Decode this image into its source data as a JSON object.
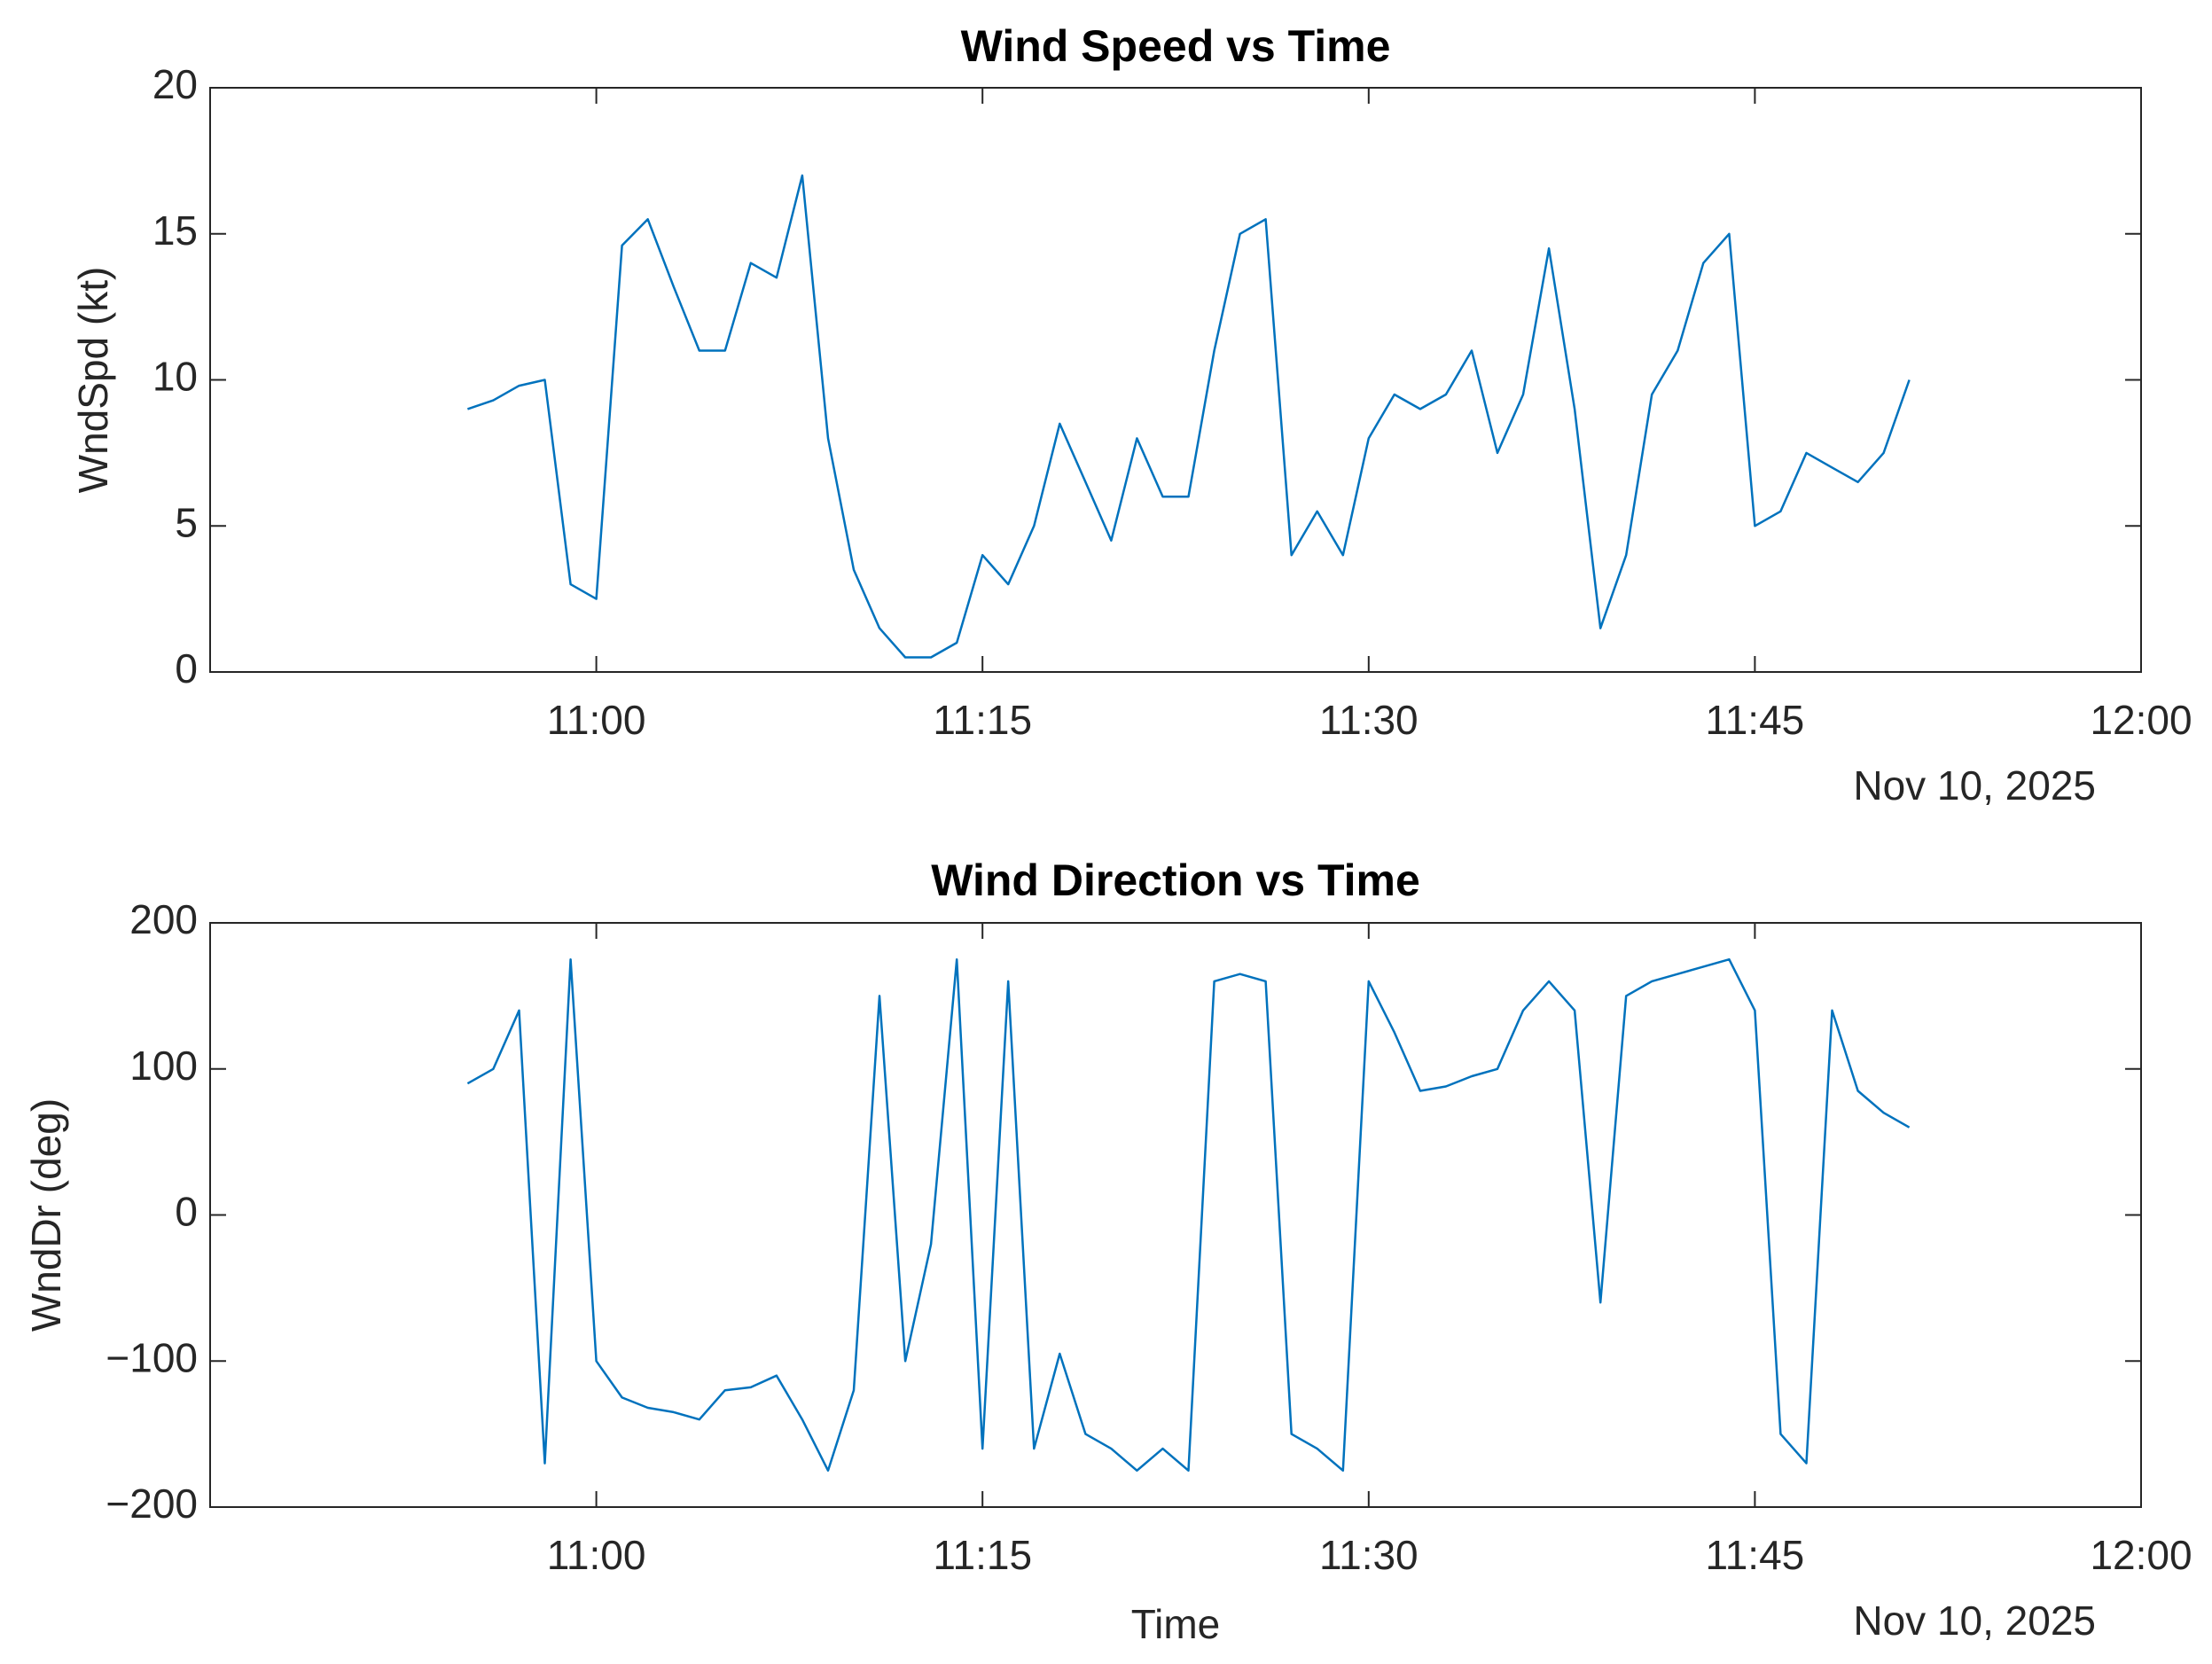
{
  "chart_data": [
    {
      "type": "line",
      "title": "Wind Speed vs Time",
      "ylabel": "WndSpd (kt)",
      "x_axis_note": "Nov 10, 2025",
      "x": [
        "10:55",
        "10:56",
        "10:57",
        "10:58",
        "10:59",
        "11:00",
        "11:01",
        "11:02",
        "11:03",
        "11:04",
        "11:05",
        "11:06",
        "11:07",
        "11:08",
        "11:09",
        "11:10",
        "11:11",
        "11:12",
        "11:13",
        "11:14",
        "11:15",
        "11:16",
        "11:17",
        "11:18",
        "11:19",
        "11:20",
        "11:21",
        "11:22",
        "11:23",
        "11:24",
        "11:25",
        "11:26",
        "11:27",
        "11:28",
        "11:29",
        "11:30",
        "11:31",
        "11:32",
        "11:33",
        "11:34",
        "11:35",
        "11:36",
        "11:37",
        "11:38",
        "11:39",
        "11:40",
        "11:41",
        "11:42",
        "11:43",
        "11:44",
        "11:45",
        "11:46",
        "11:47",
        "11:48",
        "11:49",
        "11:50",
        "11:51"
      ],
      "series": [
        {
          "name": "WndSpd",
          "color": "#0072bd",
          "values": [
            9,
            9.3,
            9.8,
            10,
            3,
            2.5,
            14.6,
            15.5,
            13.2,
            11,
            11,
            14,
            13.5,
            17,
            8,
            3.5,
            1.5,
            0.5,
            0.5,
            1,
            4,
            3,
            5,
            8.5,
            6.5,
            4.5,
            8,
            6,
            6,
            11,
            15,
            15.5,
            4,
            5.5,
            4,
            8,
            9.5,
            9,
            9.5,
            11,
            7.5,
            9.5,
            14.5,
            9,
            1.5,
            4,
            9.5,
            11,
            14,
            15,
            5,
            5.5,
            7.5,
            7,
            6.5,
            7.5,
            10
          ]
        }
      ],
      "xlim": [
        "10:45",
        "12:00"
      ],
      "xticks": [
        "11:00",
        "11:15",
        "11:30",
        "11:45",
        "12:00"
      ],
      "ylim": [
        0,
        20
      ],
      "yticks": [
        0,
        5,
        10,
        15,
        20
      ],
      "grid": false
    },
    {
      "type": "line",
      "title": "Wind Direction vs Time",
      "ylabel": "WndDr (deg)",
      "xlabel": "Time",
      "x_axis_note": "Nov 10, 2025",
      "x": [
        "10:55",
        "10:56",
        "10:57",
        "10:58",
        "10:59",
        "11:00",
        "11:01",
        "11:02",
        "11:03",
        "11:04",
        "11:05",
        "11:06",
        "11:07",
        "11:08",
        "11:09",
        "11:10",
        "11:11",
        "11:12",
        "11:13",
        "11:14",
        "11:15",
        "11:16",
        "11:17",
        "11:18",
        "11:19",
        "11:20",
        "11:21",
        "11:22",
        "11:23",
        "11:24",
        "11:25",
        "11:26",
        "11:27",
        "11:28",
        "11:29",
        "11:30",
        "11:31",
        "11:32",
        "11:33",
        "11:34",
        "11:35",
        "11:36",
        "11:37",
        "11:38",
        "11:39",
        "11:40",
        "11:41",
        "11:42",
        "11:43",
        "11:44",
        "11:45",
        "11:46",
        "11:47",
        "11:48",
        "11:49",
        "11:50",
        "11:51"
      ],
      "series": [
        {
          "name": "WndDr",
          "color": "#0072bd",
          "values": [
            90,
            100,
            140,
            -170,
            175,
            -100,
            -125,
            -132,
            -135,
            -140,
            -120,
            -118,
            -110,
            -140,
            -175,
            -120,
            150,
            -100,
            -20,
            175,
            -160,
            160,
            -160,
            -95,
            -150,
            -160,
            -175,
            -160,
            -175,
            160,
            165,
            160,
            -150,
            -160,
            -175,
            160,
            125,
            85,
            88,
            95,
            100,
            140,
            160,
            140,
            -60,
            150,
            160,
            165,
            170,
            175,
            140,
            -150,
            -170,
            140,
            85,
            70,
            60
          ]
        }
      ],
      "xlim": [
        "10:45",
        "12:00"
      ],
      "xticks": [
        "11:00",
        "11:15",
        "11:30",
        "11:45",
        "12:00"
      ],
      "ylim": [
        -200,
        200
      ],
      "yticks": [
        {
          "value": -200,
          "label": "−200"
        },
        {
          "value": -100,
          "label": "−100"
        },
        0,
        100,
        200
      ],
      "grid": false
    }
  ]
}
